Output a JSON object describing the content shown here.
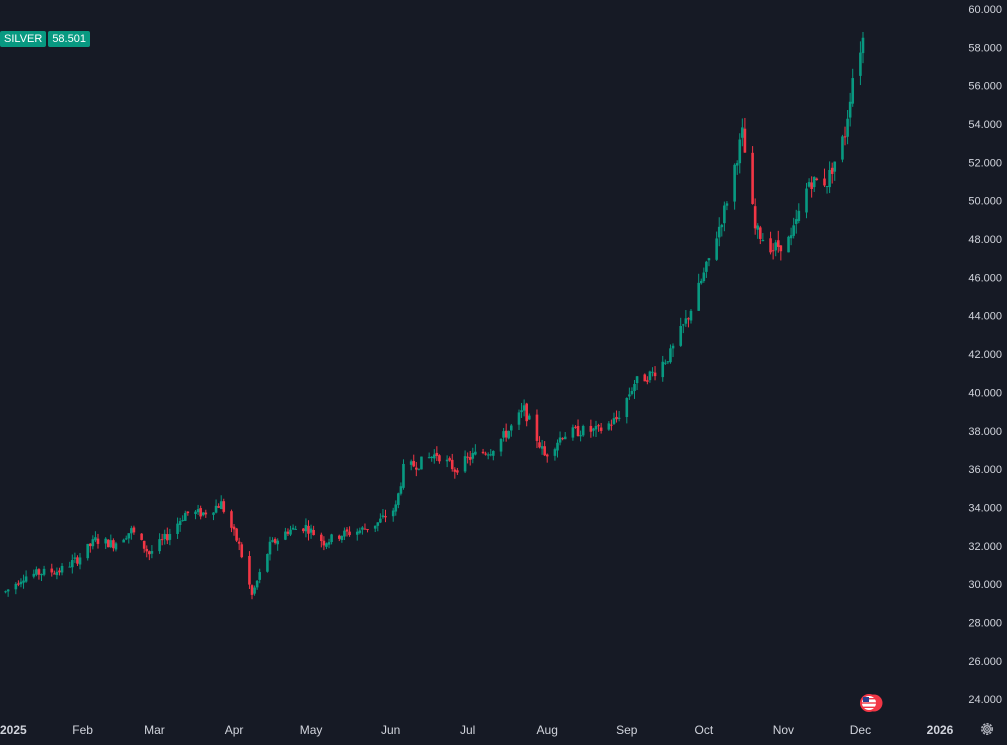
{
  "symbol": {
    "name": "SILVER",
    "last_price": "58.501"
  },
  "colors": {
    "background": "#161a25",
    "up": "#089981",
    "down": "#f23645",
    "text": "#d1d4dc"
  },
  "icons": {
    "settings": "gear-icon",
    "events": "us-flag-icon"
  },
  "chart_data": {
    "type": "candlestick",
    "title": "",
    "xlabel": "",
    "ylabel": "",
    "x_ticks": [
      "2025",
      "Feb",
      "Mar",
      "Apr",
      "May",
      "Jun",
      "Jul",
      "Aug",
      "Sep",
      "Oct",
      "Nov",
      "Dec",
      "2026"
    ],
    "y_ticks": [
      "24.000",
      "26.000",
      "28.000",
      "30.000",
      "32.000",
      "34.000",
      "36.000",
      "38.000",
      "40.000",
      "42.000",
      "44.000",
      "46.000",
      "48.000",
      "50.000",
      "52.000",
      "54.000",
      "56.000",
      "58.000",
      "60.000"
    ],
    "ylim": [
      22.8,
      60
    ],
    "grid": false,
    "series": [
      {
        "values": [
          [
            "2025-01-02",
            29.6
          ],
          [
            "2025-01-09",
            30.4
          ],
          [
            "2025-01-16",
            30.6
          ],
          [
            "2025-01-23",
            30.7
          ],
          [
            "2025-01-30",
            31.3
          ],
          [
            "2025-02-06",
            32.3
          ],
          [
            "2025-02-13",
            32.1
          ],
          [
            "2025-02-20",
            32.8
          ],
          [
            "2025-02-27",
            31.6
          ],
          [
            "2025-03-06",
            32.5
          ],
          [
            "2025-03-13",
            33.7
          ],
          [
            "2025-03-20",
            33.7
          ],
          [
            "2025-03-27",
            34.2
          ],
          [
            "2025-04-03",
            32.0
          ],
          [
            "2025-04-08",
            29.4
          ],
          [
            "2025-04-15",
            32.0
          ],
          [
            "2025-04-22",
            32.8
          ],
          [
            "2025-04-29",
            33.0
          ],
          [
            "2025-05-06",
            32.2
          ],
          [
            "2025-05-13",
            32.6
          ],
          [
            "2025-05-20",
            32.8
          ],
          [
            "2025-05-27",
            33.2
          ],
          [
            "2025-06-03",
            34.0
          ],
          [
            "2025-06-06",
            36.0
          ],
          [
            "2025-06-12",
            36.3
          ],
          [
            "2025-06-19",
            36.8
          ],
          [
            "2025-06-26",
            36.0
          ],
          [
            "2025-07-03",
            36.7
          ],
          [
            "2025-07-10",
            37.0
          ],
          [
            "2025-07-17",
            38.0
          ],
          [
            "2025-07-23",
            39.1
          ],
          [
            "2025-07-31",
            36.7
          ],
          [
            "2025-08-07",
            37.8
          ],
          [
            "2025-08-14",
            38.0
          ],
          [
            "2025-08-21",
            38.0
          ],
          [
            "2025-08-28",
            38.6
          ],
          [
            "2025-09-04",
            40.5
          ],
          [
            "2025-09-11",
            41.0
          ],
          [
            "2025-09-18",
            42.0
          ],
          [
            "2025-09-25",
            44.0
          ],
          [
            "2025-10-02",
            46.5
          ],
          [
            "2025-10-09",
            49.5
          ],
          [
            "2025-10-16",
            53.5
          ],
          [
            "2025-10-21",
            48.5
          ],
          [
            "2025-10-28",
            47.5
          ],
          [
            "2025-11-04",
            48.0
          ],
          [
            "2025-11-11",
            51.0
          ],
          [
            "2025-11-18",
            51.0
          ],
          [
            "2025-11-25",
            53.5
          ],
          [
            "2025-11-28",
            56.5
          ],
          [
            "2025-12-02",
            58.501
          ]
        ]
      }
    ]
  }
}
